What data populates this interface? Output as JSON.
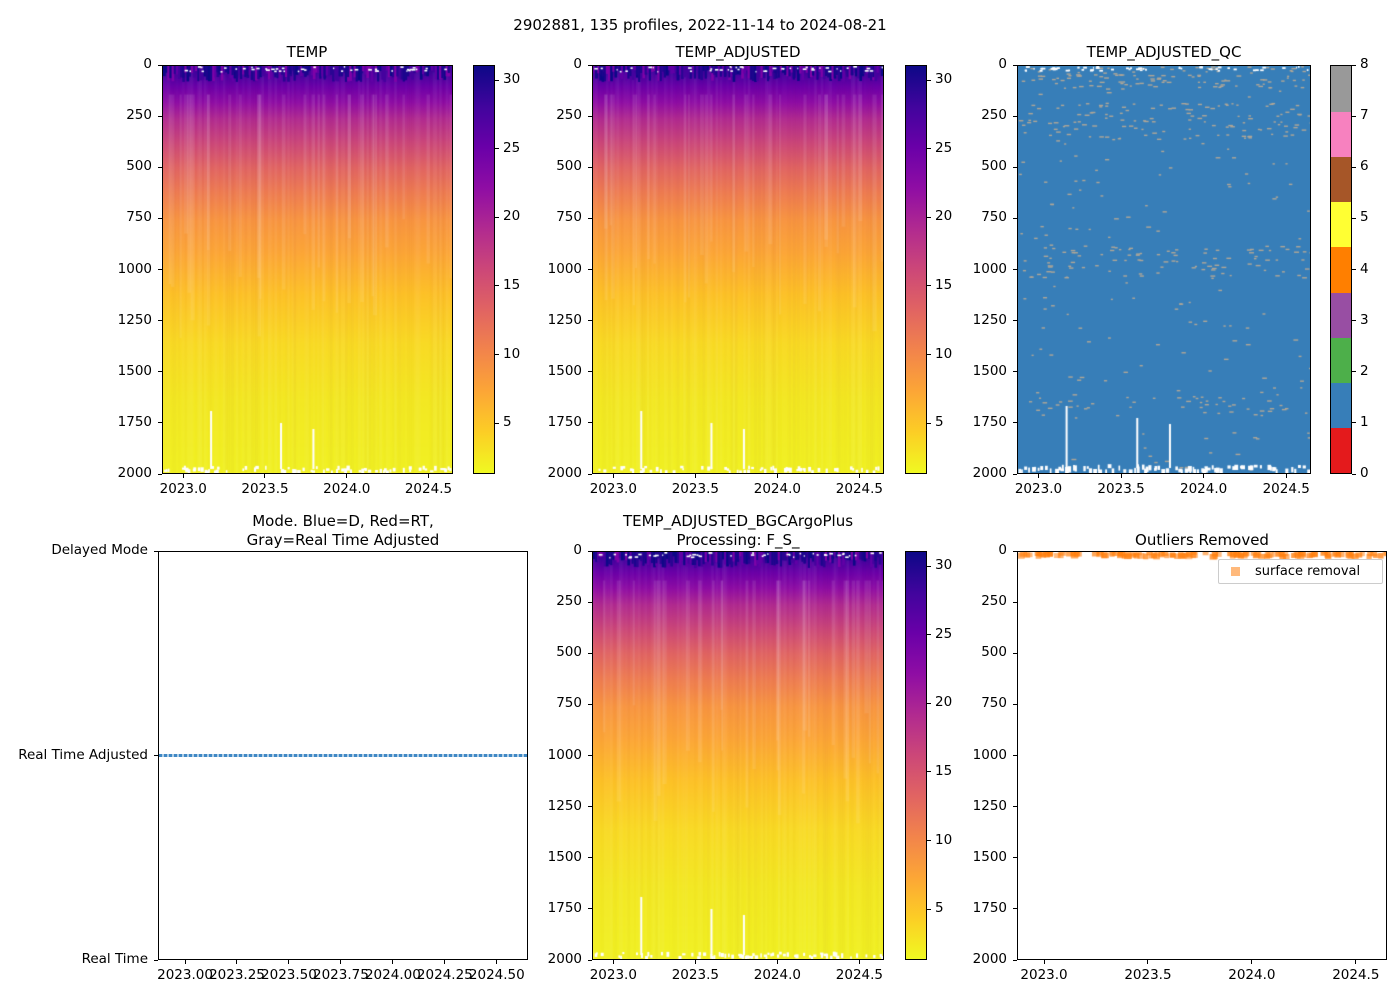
{
  "figure": {
    "title": "2902881, 135 profiles, 2022-11-14 to 2024-08-21"
  },
  "chart_data": [
    {
      "id": "temp",
      "type": "heatmap",
      "title": "TEMP",
      "x_range": [
        2022.87,
        2024.65
      ],
      "x_tick_values": [
        2023.0,
        2023.5,
        2024.0,
        2024.5
      ],
      "x_tick_labels": [
        "2023.0",
        "2023.5",
        "2024.0",
        "2024.5"
      ],
      "y_range": [
        0,
        2000
      ],
      "y_inverted": true,
      "y_tick_values": [
        0,
        250,
        500,
        750,
        1000,
        1250,
        1500,
        1750,
        2000
      ],
      "colormap": "plasma_r",
      "value_range": [
        1.3,
        31.1
      ],
      "colorbar_ticks": [
        30,
        25,
        20,
        15,
        10,
        5
      ],
      "profile_depths": [
        0,
        50,
        100,
        200,
        300,
        500,
        750,
        1000,
        1250,
        1500,
        1750,
        2000
      ],
      "profile_temps": [
        29.5,
        26.5,
        23.5,
        20.0,
        17.5,
        13.0,
        9.5,
        7.0,
        5.5,
        4.3,
        3.4,
        2.6
      ]
    },
    {
      "id": "temp_adjusted",
      "type": "heatmap",
      "title": "TEMP_ADJUSTED",
      "x_range": [
        2022.87,
        2024.65
      ],
      "x_tick_values": [
        2023.0,
        2023.5,
        2024.0,
        2024.5
      ],
      "x_tick_labels": [
        "2023.0",
        "2023.5",
        "2024.0",
        "2024.5"
      ],
      "y_range": [
        0,
        2000
      ],
      "y_inverted": true,
      "y_tick_values": [
        0,
        250,
        500,
        750,
        1000,
        1250,
        1500,
        1750,
        2000
      ],
      "colormap": "plasma_r",
      "value_range": [
        1.3,
        31.1
      ],
      "colorbar_ticks": [
        30,
        25,
        20,
        15,
        10,
        5
      ],
      "profile_depths": [
        0,
        50,
        100,
        200,
        300,
        500,
        750,
        1000,
        1250,
        1500,
        1750,
        2000
      ],
      "profile_temps": [
        29.5,
        26.5,
        23.5,
        20.0,
        17.5,
        13.0,
        9.5,
        7.0,
        5.5,
        4.3,
        3.4,
        2.6
      ]
    },
    {
      "id": "temp_adjusted_qc",
      "type": "heatmap",
      "title": "TEMP_ADJUSTED_QC",
      "x_range": [
        2022.87,
        2024.65
      ],
      "x_tick_values": [
        2023.0,
        2023.5,
        2024.0,
        2024.5
      ],
      "x_tick_labels": [
        "2023.0",
        "2023.5",
        "2024.0",
        "2024.5"
      ],
      "y_range": [
        0,
        2000
      ],
      "y_inverted": true,
      "y_tick_values": [
        0,
        250,
        500,
        750,
        1000,
        1250,
        1500,
        1750,
        2000
      ],
      "qc_value_range": [
        0,
        8
      ],
      "colorbar_ticks": [
        0,
        1,
        2,
        3,
        4,
        5,
        6,
        7,
        8
      ],
      "qc_colors": [
        "#e41a1c",
        "#377eb8",
        "#4daf4a",
        "#984ea3",
        "#ff7f00",
        "#ffff33",
        "#a65628",
        "#f781bf",
        "#999999"
      ],
      "dominant_qc_flag": 1,
      "dominant_color": "#377eb8",
      "speckle_qc_flag": 8,
      "speckle_color": "#b1a797"
    },
    {
      "id": "mode",
      "type": "line",
      "title": "Mode. Blue=D, Red=RT,\nGray=Real Time Adjusted",
      "x_range": [
        2022.87,
        2024.65
      ],
      "x_tick_values": [
        2023.0,
        2023.25,
        2023.5,
        2023.75,
        2024.0,
        2024.25,
        2024.5
      ],
      "x_tick_labels": [
        "2023.00",
        "2023.25",
        "2023.50",
        "2023.75",
        "2024.00",
        "2024.25",
        "2024.50"
      ],
      "y_categories": [
        "Real Time",
        "Real Time Adjusted",
        "Delayed Mode"
      ],
      "series": [
        {
          "name": "data-mode",
          "constant_value": "Real Time Adjusted",
          "color": "#3f88c5",
          "marker": "square-dotted"
        }
      ]
    },
    {
      "id": "bgc",
      "type": "heatmap",
      "title": "TEMP_ADJUSTED_BGCArgoPlus\nProcessing: F_S_",
      "x_range": [
        2022.87,
        2024.65
      ],
      "x_tick_values": [
        2023.0,
        2023.5,
        2024.0,
        2024.5
      ],
      "x_tick_labels": [
        "2023.0",
        "2023.5",
        "2024.0",
        "2024.5"
      ],
      "y_range": [
        0,
        2000
      ],
      "y_inverted": true,
      "y_tick_values": [
        0,
        250,
        500,
        750,
        1000,
        1250,
        1500,
        1750,
        2000
      ],
      "colormap": "plasma_r",
      "value_range": [
        1.3,
        31.1
      ],
      "colorbar_ticks": [
        30,
        25,
        20,
        15,
        10,
        5
      ],
      "profile_depths": [
        0,
        50,
        100,
        200,
        300,
        500,
        750,
        1000,
        1250,
        1500,
        1750,
        2000
      ],
      "profile_temps": [
        29.5,
        26.5,
        23.5,
        20.0,
        17.5,
        13.0,
        9.5,
        7.0,
        5.5,
        4.3,
        3.4,
        2.6
      ]
    },
    {
      "id": "outliers",
      "type": "scatter",
      "title": "Outliers Removed",
      "x_range": [
        2022.87,
        2024.65
      ],
      "x_tick_values": [
        2023.0,
        2023.5,
        2024.0,
        2024.5
      ],
      "x_tick_labels": [
        "2023.0",
        "2023.5",
        "2024.0",
        "2024.5"
      ],
      "y_range": [
        0,
        2000
      ],
      "y_inverted": true,
      "y_tick_values": [
        0,
        250,
        500,
        750,
        1000,
        1250,
        1500,
        1750,
        2000
      ],
      "legend": [
        {
          "label": "surface removal",
          "color": "#ff7f0e"
        }
      ],
      "points_summary": "orange square markers at ~0 dbar spanning 2022.9 to 2024.65"
    }
  ]
}
